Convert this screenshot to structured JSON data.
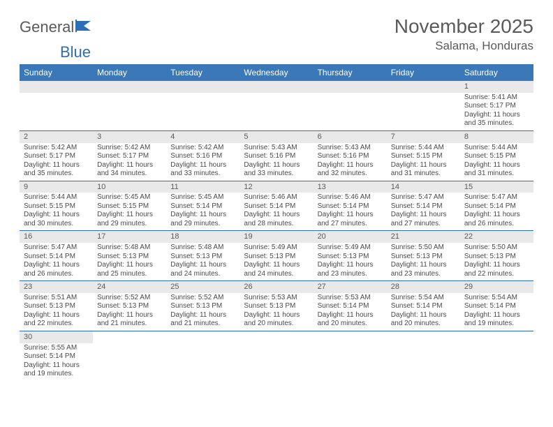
{
  "logo_text_1": "General",
  "logo_text_2": "Blue",
  "title": "November 2025",
  "location": "Salama, Honduras",
  "colors": {
    "header_bg": "#3b78b8",
    "header_text": "#ffffff",
    "daynum_bg": "#e9e9e9",
    "row_border": "#2d6fb6",
    "text": "#4a4a4a",
    "title_text": "#5a5a5a"
  },
  "weekdays": [
    "Sunday",
    "Monday",
    "Tuesday",
    "Wednesday",
    "Thursday",
    "Friday",
    "Saturday"
  ],
  "weeks": [
    [
      null,
      null,
      null,
      null,
      null,
      null,
      {
        "d": "1",
        "sr": "5:41 AM",
        "ss": "5:17 PM",
        "dl": "11 hours and 35 minutes."
      }
    ],
    [
      {
        "d": "2",
        "sr": "5:42 AM",
        "ss": "5:17 PM",
        "dl": "11 hours and 35 minutes."
      },
      {
        "d": "3",
        "sr": "5:42 AM",
        "ss": "5:17 PM",
        "dl": "11 hours and 34 minutes."
      },
      {
        "d": "4",
        "sr": "5:42 AM",
        "ss": "5:16 PM",
        "dl": "11 hours and 33 minutes."
      },
      {
        "d": "5",
        "sr": "5:43 AM",
        "ss": "5:16 PM",
        "dl": "11 hours and 33 minutes."
      },
      {
        "d": "6",
        "sr": "5:43 AM",
        "ss": "5:16 PM",
        "dl": "11 hours and 32 minutes."
      },
      {
        "d": "7",
        "sr": "5:44 AM",
        "ss": "5:15 PM",
        "dl": "11 hours and 31 minutes."
      },
      {
        "d": "8",
        "sr": "5:44 AM",
        "ss": "5:15 PM",
        "dl": "11 hours and 31 minutes."
      }
    ],
    [
      {
        "d": "9",
        "sr": "5:44 AM",
        "ss": "5:15 PM",
        "dl": "11 hours and 30 minutes."
      },
      {
        "d": "10",
        "sr": "5:45 AM",
        "ss": "5:15 PM",
        "dl": "11 hours and 29 minutes."
      },
      {
        "d": "11",
        "sr": "5:45 AM",
        "ss": "5:14 PM",
        "dl": "11 hours and 29 minutes."
      },
      {
        "d": "12",
        "sr": "5:46 AM",
        "ss": "5:14 PM",
        "dl": "11 hours and 28 minutes."
      },
      {
        "d": "13",
        "sr": "5:46 AM",
        "ss": "5:14 PM",
        "dl": "11 hours and 27 minutes."
      },
      {
        "d": "14",
        "sr": "5:47 AM",
        "ss": "5:14 PM",
        "dl": "11 hours and 27 minutes."
      },
      {
        "d": "15",
        "sr": "5:47 AM",
        "ss": "5:14 PM",
        "dl": "11 hours and 26 minutes."
      }
    ],
    [
      {
        "d": "16",
        "sr": "5:47 AM",
        "ss": "5:14 PM",
        "dl": "11 hours and 26 minutes."
      },
      {
        "d": "17",
        "sr": "5:48 AM",
        "ss": "5:13 PM",
        "dl": "11 hours and 25 minutes."
      },
      {
        "d": "18",
        "sr": "5:48 AM",
        "ss": "5:13 PM",
        "dl": "11 hours and 24 minutes."
      },
      {
        "d": "19",
        "sr": "5:49 AM",
        "ss": "5:13 PM",
        "dl": "11 hours and 24 minutes."
      },
      {
        "d": "20",
        "sr": "5:49 AM",
        "ss": "5:13 PM",
        "dl": "11 hours and 23 minutes."
      },
      {
        "d": "21",
        "sr": "5:50 AM",
        "ss": "5:13 PM",
        "dl": "11 hours and 23 minutes."
      },
      {
        "d": "22",
        "sr": "5:50 AM",
        "ss": "5:13 PM",
        "dl": "11 hours and 22 minutes."
      }
    ],
    [
      {
        "d": "23",
        "sr": "5:51 AM",
        "ss": "5:13 PM",
        "dl": "11 hours and 22 minutes."
      },
      {
        "d": "24",
        "sr": "5:52 AM",
        "ss": "5:13 PM",
        "dl": "11 hours and 21 minutes."
      },
      {
        "d": "25",
        "sr": "5:52 AM",
        "ss": "5:13 PM",
        "dl": "11 hours and 21 minutes."
      },
      {
        "d": "26",
        "sr": "5:53 AM",
        "ss": "5:13 PM",
        "dl": "11 hours and 20 minutes."
      },
      {
        "d": "27",
        "sr": "5:53 AM",
        "ss": "5:14 PM",
        "dl": "11 hours and 20 minutes."
      },
      {
        "d": "28",
        "sr": "5:54 AM",
        "ss": "5:14 PM",
        "dl": "11 hours and 20 minutes."
      },
      {
        "d": "29",
        "sr": "5:54 AM",
        "ss": "5:14 PM",
        "dl": "11 hours and 19 minutes."
      }
    ],
    [
      {
        "d": "30",
        "sr": "5:55 AM",
        "ss": "5:14 PM",
        "dl": "11 hours and 19 minutes."
      },
      null,
      null,
      null,
      null,
      null,
      null
    ]
  ],
  "labels": {
    "sunrise": "Sunrise: ",
    "sunset": "Sunset: ",
    "daylight": "Daylight: "
  }
}
